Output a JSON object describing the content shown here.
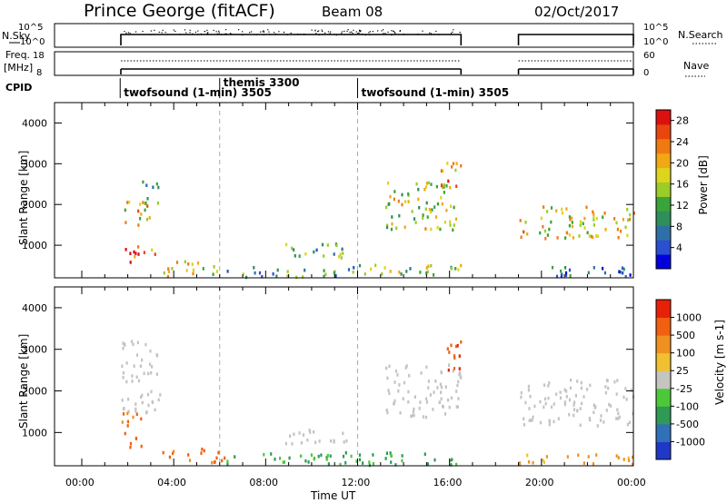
{
  "header": {
    "station": "Prince George (fitACF)",
    "beam": "Beam 08",
    "date": "02/Oct/2017"
  },
  "top_panels": {
    "nsky": {
      "left_label": "N.Sky",
      "right_label": "N.Search",
      "ticks": [
        "10^5",
        "10^0"
      ]
    },
    "freq": {
      "left_label_1": "Freq.",
      "left_label_2": "[MHz]",
      "right_label": "Nave",
      "left_ticks": [
        "18",
        "8"
      ],
      "right_ticks": [
        "60",
        "0"
      ]
    },
    "cpid": {
      "label": "CPID",
      "segments": [
        {
          "name": "twofsound (1-min) 3505",
          "start_hour": 1.67
        },
        {
          "name": "themis 3300",
          "start_hour": 6.0
        },
        {
          "name": "twofsound (1-min) 3505",
          "start_hour": 12.0
        }
      ]
    }
  },
  "chart_data": [
    {
      "type": "heatmap",
      "title": "Power",
      "ylabel": "Slant Range [km]",
      "xlabel": "Time UT",
      "xlim": [
        0,
        24
      ],
      "ylim": [
        200,
        4500
      ],
      "yticks": [
        "1000",
        "2000",
        "3000",
        "4000"
      ],
      "xticks": [
        "00:00",
        "04:00",
        "08:00",
        "12:00",
        "16:00",
        "20:00",
        "00:00"
      ],
      "colorbar": {
        "label": "Power [dB]",
        "ticks": [
          "4",
          "8",
          "12",
          "16",
          "20",
          "24",
          "28"
        ],
        "range": [
          0,
          30
        ],
        "colors": [
          "#0000dd",
          "#2a4fd0",
          "#2f6fa8",
          "#2e8f5a",
          "#3aa33a",
          "#9ccc28",
          "#ddd51c",
          "#f2a815",
          "#f07a12",
          "#e8460e",
          "#dd1010"
        ]
      },
      "data_gap_hours": [
        16.6,
        19.0
      ],
      "regions": [
        {
          "t": [
            1.7,
            2.6
          ],
          "r": [
            600,
            1100
          ],
          "power": 26
        },
        {
          "t": [
            1.8,
            3.2
          ],
          "r": [
            1500,
            2100
          ],
          "power": 18
        },
        {
          "t": [
            2.6,
            3.4
          ],
          "r": [
            2000,
            2700
          ],
          "power": 14
        },
        {
          "t": [
            2.6,
            3.2
          ],
          "r": [
            800,
            1100
          ],
          "power": 24
        },
        {
          "t": [
            3.5,
            6.2
          ],
          "r": [
            250,
            650
          ],
          "power": 18
        },
        {
          "t": [
            6.2,
            12.0
          ],
          "r": [
            250,
            500
          ],
          "power": 10
        },
        {
          "t": [
            8.8,
            11.6
          ],
          "r": [
            700,
            1100
          ],
          "power": 12
        },
        {
          "t": [
            12.0,
            16.5
          ],
          "r": [
            250,
            550
          ],
          "power": 14
        },
        {
          "t": [
            13.2,
            16.5
          ],
          "r": [
            1400,
            2600
          ],
          "power": 16
        },
        {
          "t": [
            15.4,
            16.5
          ],
          "r": [
            2400,
            3100
          ],
          "power": 22
        },
        {
          "t": [
            19.0,
            24.0
          ],
          "r": [
            1200,
            2000
          ],
          "power": 18
        },
        {
          "t": [
            19.0,
            24.0
          ],
          "r": [
            250,
            500
          ],
          "power": 6
        }
      ]
    },
    {
      "type": "heatmap",
      "title": "Velocity",
      "ylabel": "Slant Range [km]",
      "xlabel": "Time UT",
      "xlim": [
        0,
        24
      ],
      "ylim": [
        200,
        4500
      ],
      "yticks": [
        "1000",
        "2000",
        "3000",
        "4000"
      ],
      "xticks": [
        "00:00",
        "04:00",
        "08:00",
        "12:00",
        "16:00",
        "20:00",
        "00:00"
      ],
      "colorbar": {
        "label": "Velocity [m s-1]",
        "ticks": [
          "1000",
          "500",
          "100",
          "25",
          "-25",
          "-100",
          "-500",
          "-1000"
        ],
        "colors": [
          "#2038c8",
          "#2f70b8",
          "#2e9a55",
          "#4cc83a",
          "#c4c4c0",
          "#f0c030",
          "#f09020",
          "#f06010",
          "#e82008"
        ]
      },
      "data_gap_hours": [
        16.6,
        19.0
      ],
      "regions": [
        {
          "t": [
            1.7,
            3.4
          ],
          "r": [
            1500,
            3300
          ],
          "velocity": 0
        },
        {
          "t": [
            1.7,
            2.6
          ],
          "r": [
            600,
            1500
          ],
          "velocity": -400
        },
        {
          "t": [
            3.5,
            6.2
          ],
          "r": [
            300,
            650
          ],
          "velocity": -300
        },
        {
          "t": [
            6.2,
            12.0
          ],
          "r": [
            250,
            550
          ],
          "velocity": 60
        },
        {
          "t": [
            8.8,
            11.6
          ],
          "r": [
            700,
            1100
          ],
          "velocity": 0
        },
        {
          "t": [
            12.0,
            16.5
          ],
          "r": [
            250,
            550
          ],
          "velocity": 80
        },
        {
          "t": [
            13.2,
            16.5
          ],
          "r": [
            1400,
            2700
          ],
          "velocity": 0
        },
        {
          "t": [
            15.8,
            16.5
          ],
          "r": [
            2300,
            3300
          ],
          "velocity": -700
        },
        {
          "t": [
            19.0,
            24.0
          ],
          "r": [
            1200,
            2300
          ],
          "velocity": 0
        },
        {
          "t": [
            19.0,
            24.0
          ],
          "r": [
            250,
            500
          ],
          "velocity": -80
        }
      ]
    }
  ]
}
